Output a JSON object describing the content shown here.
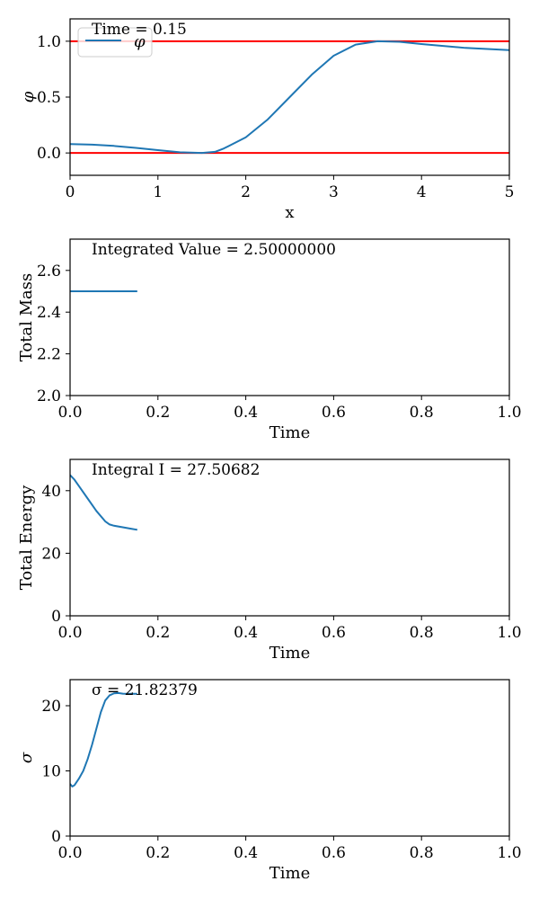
{
  "colors": {
    "line": "#1f77b4",
    "bound": "#ff0000",
    "axis": "#000000",
    "background": "#ffffff"
  },
  "chart_data": [
    {
      "type": "line",
      "annotation": "Time = 0.15",
      "xlabel": "x",
      "ylabel": "φ",
      "xlim": [
        0,
        5
      ],
      "ylim": [
        -0.2,
        1.2
      ],
      "xticks": [
        0,
        1,
        2,
        3,
        4,
        5
      ],
      "xtick_labels": [
        "0",
        "1",
        "2",
        "3",
        "4",
        "5"
      ],
      "yticks": [
        0,
        0.5,
        1
      ],
      "ytick_labels": [
        "0.0",
        "0.5",
        "1.0"
      ],
      "legend": {
        "entries": [
          "φ"
        ],
        "placement": "upper-left"
      },
      "hlines": [
        0,
        1
      ],
      "series": [
        {
          "name": "φ",
          "x": [
            0,
            0.25,
            0.5,
            0.75,
            1.0,
            1.25,
            1.5,
            1.65,
            1.75,
            2.0,
            2.25,
            2.5,
            2.75,
            3.0,
            3.25,
            3.5,
            3.75,
            4.0,
            4.5,
            5.0
          ],
          "y": [
            0.08,
            0.075,
            0.063,
            0.045,
            0.025,
            0.006,
            0.0,
            0.01,
            0.04,
            0.14,
            0.3,
            0.5,
            0.7,
            0.87,
            0.97,
            1.0,
            0.995,
            0.975,
            0.94,
            0.92
          ]
        }
      ]
    },
    {
      "type": "line",
      "annotation": "Integrated Value = 2.50000000",
      "xlabel": "Time",
      "ylabel": "Total Mass",
      "xlim": [
        0,
        1
      ],
      "ylim": [
        2.0,
        2.75
      ],
      "xticks": [
        0,
        0.2,
        0.4,
        0.6,
        0.8,
        1.0
      ],
      "xtick_labels": [
        "0.0",
        "0.2",
        "0.4",
        "0.6",
        "0.8",
        "1.0"
      ],
      "yticks": [
        2.0,
        2.2,
        2.4,
        2.6
      ],
      "ytick_labels": [
        "2.0",
        "2.2",
        "2.4",
        "2.6"
      ],
      "series": [
        {
          "x": [
            0,
            0.05,
            0.1,
            0.153
          ],
          "y": [
            2.5,
            2.5,
            2.5,
            2.5
          ]
        }
      ]
    },
    {
      "type": "line",
      "annotation": "Integral I = 27.50682",
      "xlabel": "Time",
      "ylabel": "Total Energy",
      "xlim": [
        0,
        1
      ],
      "ylim": [
        0,
        50
      ],
      "xticks": [
        0,
        0.2,
        0.4,
        0.6,
        0.8,
        1.0
      ],
      "xtick_labels": [
        "0.0",
        "0.2",
        "0.4",
        "0.6",
        "0.8",
        "1.0"
      ],
      "yticks": [
        0,
        20,
        40
      ],
      "ytick_labels": [
        "0",
        "20",
        "40"
      ],
      "series": [
        {
          "x": [
            0,
            0.01,
            0.02,
            0.04,
            0.06,
            0.08,
            0.09,
            0.1,
            0.12,
            0.14,
            0.153
          ],
          "y": [
            45,
            43.5,
            41.5,
            37.5,
            33.5,
            30.2,
            29.2,
            28.8,
            28.3,
            27.8,
            27.5
          ]
        }
      ]
    },
    {
      "type": "line",
      "annotation": "σ = 21.82379",
      "xlabel": "Time",
      "ylabel": "σ",
      "xlim": [
        0,
        1
      ],
      "ylim": [
        0,
        24
      ],
      "xticks": [
        0,
        0.2,
        0.4,
        0.6,
        0.8,
        1.0
      ],
      "xtick_labels": [
        "0.0",
        "0.2",
        "0.4",
        "0.6",
        "0.8",
        "1.0"
      ],
      "yticks": [
        0,
        10,
        20
      ],
      "ytick_labels": [
        "0",
        "10",
        "20"
      ],
      "series": [
        {
          "x": [
            0,
            0.005,
            0.01,
            0.02,
            0.03,
            0.04,
            0.05,
            0.06,
            0.07,
            0.08,
            0.09,
            0.1,
            0.11,
            0.12,
            0.13,
            0.14,
            0.153
          ],
          "y": [
            8,
            7.6,
            7.8,
            8.8,
            10.0,
            11.8,
            14.0,
            16.5,
            19.0,
            20.8,
            21.6,
            21.9,
            21.95,
            21.85,
            21.82,
            21.82,
            21.82
          ]
        }
      ]
    }
  ]
}
